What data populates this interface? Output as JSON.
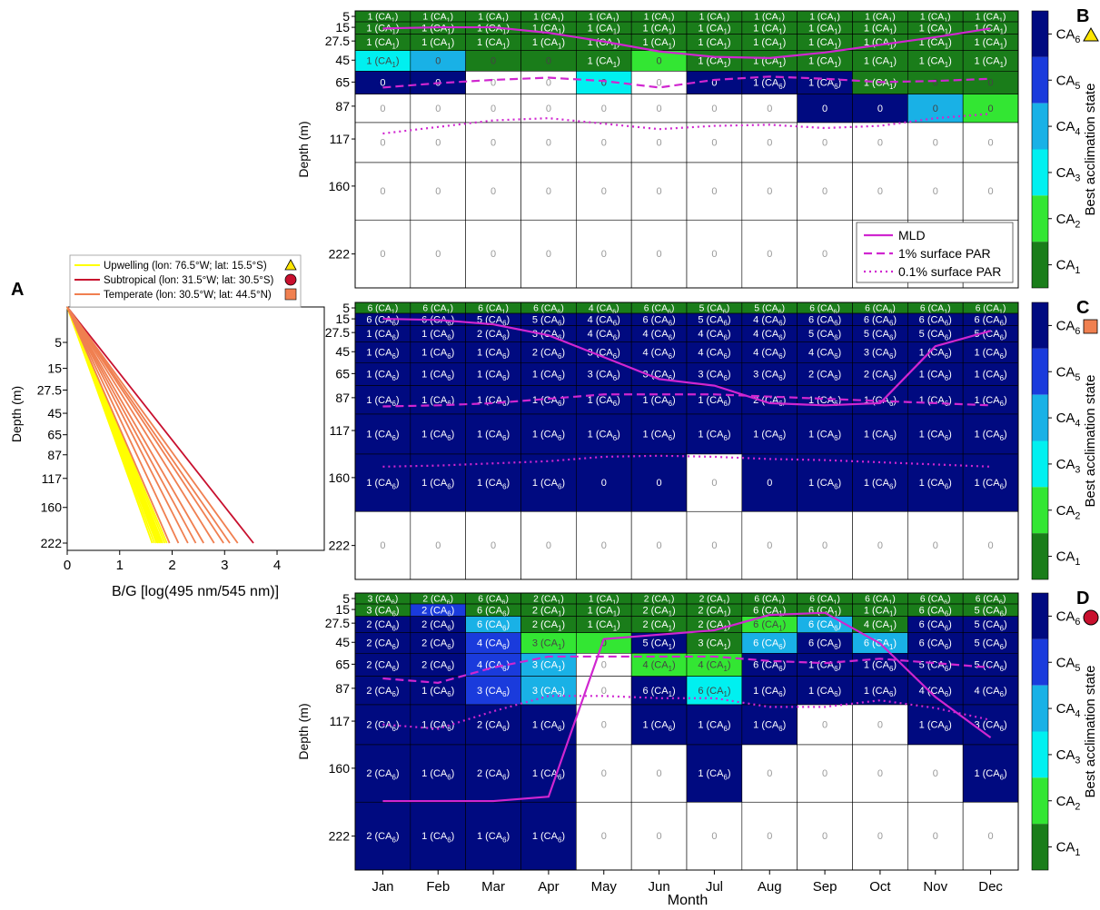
{
  "chart_data": [
    {
      "panel": "A",
      "type": "line",
      "xlabel": "B/G [log(495 nm/545 nm)]",
      "ylabel": "Depth (m)",
      "xticks": [
        "0",
        "1",
        "2",
        "3",
        "4"
      ],
      "xlim": [
        0,
        4.9
      ],
      "yticks": [
        "5",
        "15",
        "27.5",
        "45",
        "65",
        "87",
        "117",
        "160",
        "222"
      ],
      "ylim": [
        222,
        0
      ],
      "y_scale": "sqrt",
      "legend_position": "top",
      "series": [
        {
          "name": "Upwelling (lon: 76.5°W; lat: 15.5°S)",
          "color": "#ffff00",
          "marker": "triangle-yellow",
          "endpoints_at_222": [
            1.62,
            1.66,
            1.7,
            1.73,
            1.76,
            1.79,
            1.82,
            1.86,
            1.9
          ]
        },
        {
          "name": "Subtropical (lon: 31.5°W; lat: 30.5°S)",
          "color": "#c8102e",
          "marker": "circle-red",
          "endpoints_at_222": [
            3.55
          ]
        },
        {
          "name": "Temperate (lon: 30.5°W; lat: 44.5°N)",
          "color": "#f07f50",
          "marker": "square-orange",
          "endpoints_at_222": [
            1.95,
            2.12,
            2.3,
            2.45,
            2.6,
            2.8,
            2.98,
            3.1,
            3.25
          ]
        }
      ],
      "start": {
        "x": 0,
        "y": 0
      }
    },
    {
      "panel": "B",
      "type": "heatmap",
      "marker": "triangle-yellow",
      "ylabel": "Depth (m)",
      "months": [
        "Jan",
        "Feb",
        "Mar",
        "Apr",
        "May",
        "Jun",
        "Jul",
        "Aug",
        "Sep",
        "Oct",
        "Nov",
        "Dec"
      ],
      "depths": [
        "5",
        "15",
        "27.5",
        "45",
        "65",
        "87",
        "117",
        "160",
        "222"
      ],
      "cells": [
        [
          "1 (CA1)",
          "1 (CA1)",
          "1 (CA1)",
          "1 (CA1)",
          "1 (CA1)",
          "1 (CA1)",
          "1 (CA1)",
          "1 (CA1)",
          "1 (CA1)",
          "1 (CA1)",
          "1 (CA1)",
          "1 (CA1)"
        ],
        [
          "1 (CA1)",
          "1 (CA1)",
          "1 (CA1)",
          "1 (CA1)",
          "1 (CA1)",
          "1 (CA1)",
          "1 (CA1)",
          "1 (CA1)",
          "1 (CA1)",
          "1 (CA1)",
          "1 (CA1)",
          "1 (CA1)"
        ],
        [
          "1 (CA1)",
          "1 (CA1)",
          "1 (CA1)",
          "1 (CA1)",
          "1 (CA1)",
          "1 (CA1)",
          "1 (CA1)",
          "1 (CA1)",
          "1 (CA1)",
          "1 (CA1)",
          "1 (CA1)",
          "1 (CA1)"
        ],
        [
          "1 (CA1)",
          "0",
          "0",
          "0",
          "1 (CA1)",
          "0",
          "1 (CA1)",
          "1 (CA1)",
          "1 (CA1)",
          "1 (CA1)",
          "1 (CA1)",
          "1 (CA1)"
        ],
        [
          "0",
          "0",
          "0",
          "0",
          "0",
          "0",
          "0",
          "1 (CA6)",
          "1 (CA6)",
          "1 (CA1)",
          "0",
          "0"
        ],
        [
          "0",
          "0",
          "0",
          "0",
          "0",
          "0",
          "0",
          "0",
          "0",
          "0",
          "0",
          "0"
        ],
        [
          "0",
          "0",
          "0",
          "0",
          "0",
          "0",
          "0",
          "0",
          "0",
          "0",
          "0",
          "0"
        ],
        [
          "0",
          "0",
          "0",
          "0",
          "0",
          "0",
          "0",
          "0",
          "0",
          "0",
          "0",
          "0"
        ],
        [
          "0",
          "0",
          "0",
          "0",
          "0",
          "0",
          "0",
          "0",
          "0",
          "0",
          "0",
          "0"
        ]
      ],
      "state": [
        [
          1,
          1,
          1,
          1,
          1,
          1,
          1,
          1,
          1,
          1,
          1,
          1
        ],
        [
          1,
          1,
          1,
          1,
          1,
          1,
          1,
          1,
          1,
          1,
          1,
          1
        ],
        [
          1,
          1,
          1,
          1,
          1,
          1,
          1,
          1,
          1,
          1,
          1,
          1
        ],
        [
          3,
          4,
          1,
          1,
          1,
          2,
          1,
          1,
          1,
          1,
          1,
          1
        ],
        [
          6,
          6,
          0,
          0,
          3,
          0,
          6,
          6,
          6,
          1,
          1,
          1
        ],
        [
          0,
          0,
          0,
          0,
          0,
          0,
          0,
          0,
          6,
          6,
          4,
          2
        ],
        [
          0,
          0,
          0,
          0,
          0,
          0,
          0,
          0,
          0,
          0,
          0,
          0
        ],
        [
          0,
          0,
          0,
          0,
          0,
          0,
          0,
          0,
          0,
          0,
          0,
          0
        ],
        [
          0,
          0,
          0,
          0,
          0,
          0,
          0,
          0,
          0,
          0,
          0,
          0
        ]
      ],
      "mld": [
        16,
        15,
        15,
        20,
        28,
        37,
        42,
        43,
        38,
        31,
        24,
        16
      ],
      "par1": [
        70,
        66,
        63,
        61,
        64,
        70,
        63,
        60,
        62,
        65,
        64,
        62
      ],
      "par01": [
        112,
        106,
        100,
        98,
        103,
        108,
        105,
        104,
        107,
        105,
        98,
        94
      ],
      "legend": {
        "position": "bottom-right",
        "items": [
          "MLD",
          "1% surface PAR",
          "0.1% surface PAR"
        ]
      }
    },
    {
      "panel": "C",
      "type": "heatmap",
      "marker": "square-orange",
      "ylabel": "",
      "months": [
        "Jan",
        "Feb",
        "Mar",
        "Apr",
        "May",
        "Jun",
        "Jul",
        "Aug",
        "Sep",
        "Oct",
        "Nov",
        "Dec"
      ],
      "depths": [
        "5",
        "15",
        "27.5",
        "45",
        "65",
        "87",
        "117",
        "160",
        "222"
      ],
      "cells": [
        [
          "6 (CA1)",
          "6 (CA1)",
          "6 (CA1)",
          "6 (CA6)",
          "4 (CA6)",
          "6 (CA6)",
          "5 (CA6)",
          "5 (CA6)",
          "6 (CA6)",
          "6 (CA6)",
          "6 (CA1)",
          "6 (CA1)"
        ],
        [
          "6 (CA6)",
          "6 (CA6)",
          "5 (CA6)",
          "5 (CA6)",
          "4 (CA6)",
          "6 (CA6)",
          "5 (CA6)",
          "4 (CA6)",
          "6 (CA6)",
          "6 (CA6)",
          "6 (CA6)",
          "6 (CA6)"
        ],
        [
          "1 (CA6)",
          "1 (CA6)",
          "2 (CA6)",
          "3 (CA6)",
          "4 (CA6)",
          "4 (CA6)",
          "4 (CA6)",
          "4 (CA6)",
          "5 (CA6)",
          "5 (CA6)",
          "5 (CA6)",
          "5 (CA6)"
        ],
        [
          "1 (CA6)",
          "1 (CA6)",
          "1 (CA6)",
          "2 (CA6)",
          "3 (CA6)",
          "4 (CA6)",
          "4 (CA6)",
          "4 (CA6)",
          "4 (CA6)",
          "3 (CA6)",
          "1 (CA6)",
          "1 (CA6)"
        ],
        [
          "1 (CA6)",
          "1 (CA6)",
          "1 (CA6)",
          "1 (CA6)",
          "3 (CA6)",
          "3 (CA6)",
          "3 (CA6)",
          "3 (CA6)",
          "2 (CA6)",
          "2 (CA6)",
          "1 (CA6)",
          "1 (CA6)"
        ],
        [
          "1 (CA6)",
          "1 (CA6)",
          "1 (CA6)",
          "1 (CA6)",
          "1 (CA6)",
          "1 (CA6)",
          "1 (CA6)",
          "2 (CA6)",
          "1 (CA6)",
          "1 (CA6)",
          "1 (CA6)",
          "1 (CA6)"
        ],
        [
          "1 (CA6)",
          "1 (CA6)",
          "1 (CA6)",
          "1 (CA6)",
          "1 (CA6)",
          "1 (CA6)",
          "1 (CA6)",
          "1 (CA6)",
          "1 (CA6)",
          "1 (CA6)",
          "1 (CA6)",
          "1 (CA6)"
        ],
        [
          "1 (CA6)",
          "1 (CA6)",
          "1 (CA6)",
          "1 (CA6)",
          "0",
          "0",
          "0",
          "0",
          "1 (CA6)",
          "1 (CA6)",
          "1 (CA6)",
          "1 (CA6)"
        ],
        [
          "0",
          "0",
          "0",
          "0",
          "0",
          "0",
          "0",
          "0",
          "0",
          "0",
          "0",
          "0"
        ]
      ],
      "state": [
        [
          1,
          1,
          1,
          1,
          1,
          1,
          1,
          1,
          1,
          1,
          1,
          1
        ],
        [
          6,
          6,
          6,
          6,
          6,
          6,
          6,
          6,
          6,
          6,
          6,
          6
        ],
        [
          6,
          6,
          6,
          6,
          6,
          6,
          6,
          6,
          6,
          6,
          6,
          6
        ],
        [
          6,
          6,
          6,
          6,
          6,
          6,
          6,
          6,
          6,
          6,
          6,
          6
        ],
        [
          6,
          6,
          6,
          6,
          6,
          6,
          6,
          6,
          6,
          6,
          6,
          6
        ],
        [
          6,
          6,
          6,
          6,
          6,
          6,
          6,
          6,
          6,
          6,
          6,
          6
        ],
        [
          6,
          6,
          6,
          6,
          6,
          6,
          6,
          6,
          6,
          6,
          6,
          6
        ],
        [
          6,
          6,
          6,
          6,
          6,
          6,
          0,
          6,
          6,
          6,
          6,
          6
        ],
        [
          0,
          0,
          0,
          0,
          0,
          0,
          0,
          0,
          0,
          0,
          0,
          0
        ]
      ],
      "mld": [
        15,
        16,
        20,
        30,
        50,
        70,
        76,
        92,
        94,
        92,
        40,
        26
      ],
      "par1": [
        95,
        94,
        92,
        88,
        84,
        84,
        84,
        86,
        88,
        90,
        92,
        94
      ],
      "par01": [
        150,
        149,
        147,
        145,
        141,
        140,
        141,
        143,
        144,
        146,
        148,
        150
      ],
      "legend": null
    },
    {
      "panel": "D",
      "type": "heatmap",
      "marker": "circle-red",
      "ylabel": "Depth (m)",
      "xlabel": "Month",
      "months": [
        "Jan",
        "Feb",
        "Mar",
        "Apr",
        "May",
        "Jun",
        "Jul",
        "Aug",
        "Sep",
        "Oct",
        "Nov",
        "Dec"
      ],
      "depths": [
        "5",
        "15",
        "27.5",
        "45",
        "65",
        "87",
        "117",
        "160",
        "222"
      ],
      "cells": [
        [
          "3 (CA6)",
          "2 (CA6)",
          "6 (CA6)",
          "2 (CA1)",
          "1 (CA1)",
          "2 (CA1)",
          "2 (CA1)",
          "6 (CA1)",
          "6 (CA1)",
          "6 (CA1)",
          "6 (CA6)",
          "6 (CA6)"
        ],
        [
          "3 (CA6)",
          "2 (CA6)",
          "6 (CA6)",
          "2 (CA1)",
          "1 (CA1)",
          "2 (CA1)",
          "2 (CA1)",
          "6 (CA1)",
          "6 (CA1)",
          "1 (CA1)",
          "6 (CA6)",
          "5 (CA6)"
        ],
        [
          "2 (CA6)",
          "2 (CA6)",
          "6 (CA6)",
          "2 (CA1)",
          "1 (CA1)",
          "2 (CA1)",
          "2 (CA1)",
          "6 (CA1)",
          "6 (CA6)",
          "4 (CA1)",
          "6 (CA6)",
          "5 (CA6)"
        ],
        [
          "2 (CA6)",
          "2 (CA6)",
          "4 (CA6)",
          "3 (CA1)",
          "0",
          "5 (CA1)",
          "3 (CA1)",
          "6 (CA6)",
          "6 (CA6)",
          "6 (CA1)",
          "6 (CA6)",
          "5 (CA6)"
        ],
        [
          "2 (CA6)",
          "2 (CA6)",
          "4 (CA6)",
          "3 (CA1)",
          "0",
          "4 (CA1)",
          "4 (CA1)",
          "6 (CA6)",
          "1 (CA6)",
          "1 (CA6)",
          "5 (CA6)",
          "5 (CA6)"
        ],
        [
          "2 (CA6)",
          "1 (CA6)",
          "3 (CA6)",
          "3 (CA6)",
          "0",
          "6 (CA1)",
          "6 (CA1)",
          "1 (CA6)",
          "1 (CA6)",
          "1 (CA6)",
          "4 (CA6)",
          "4 (CA6)"
        ],
        [
          "2 (CA6)",
          "1 (CA6)",
          "2 (CA6)",
          "1 (CA6)",
          "0",
          "1 (CA6)",
          "1 (CA6)",
          "1 (CA6)",
          "0",
          "0",
          "1 (CA6)",
          "3 (CA6)"
        ],
        [
          "2 (CA6)",
          "1 (CA6)",
          "2 (CA6)",
          "1 (CA6)",
          "0",
          "0",
          "1 (CA6)",
          "0",
          "0",
          "0",
          "0",
          "1 (CA6)"
        ],
        [
          "2 (CA6)",
          "1 (CA6)",
          "1 (CA6)",
          "1 (CA6)",
          "0",
          "0",
          "0",
          "0",
          "0",
          "0",
          "0",
          "0"
        ]
      ],
      "state": [
        [
          1,
          1,
          1,
          1,
          1,
          1,
          1,
          1,
          1,
          1,
          1,
          1
        ],
        [
          1,
          5,
          1,
          1,
          1,
          1,
          1,
          1,
          1,
          1,
          1,
          1
        ],
        [
          6,
          6,
          4,
          1,
          1,
          1,
          1,
          2,
          4,
          1,
          6,
          6
        ],
        [
          6,
          6,
          5,
          2,
          2,
          6,
          1,
          4,
          6,
          4,
          6,
          6
        ],
        [
          6,
          6,
          5,
          4,
          0,
          2,
          2,
          6,
          6,
          6,
          6,
          6
        ],
        [
          6,
          6,
          5,
          4,
          0,
          6,
          3,
          6,
          6,
          6,
          6,
          6
        ],
        [
          6,
          6,
          6,
          6,
          0,
          6,
          6,
          6,
          0,
          0,
          6,
          6
        ],
        [
          6,
          6,
          6,
          6,
          0,
          0,
          6,
          0,
          0,
          0,
          0,
          6
        ],
        [
          6,
          6,
          6,
          6,
          0,
          0,
          0,
          0,
          0,
          0,
          0,
          0
        ]
      ],
      "mld": [
        190,
        190,
        190,
        186,
        42,
        38,
        34,
        20,
        18,
        46,
        95,
        132
      ],
      "par1": [
        78,
        82,
        68,
        58,
        58,
        58,
        58,
        62,
        64,
        60,
        64,
        68
      ],
      "par01": [
        120,
        124,
        108,
        94,
        94,
        96,
        96,
        104,
        104,
        98,
        105,
        116
      ],
      "legend": null
    }
  ],
  "colorbar": {
    "label": "Best acclimation state",
    "states": [
      {
        "name": "CA1",
        "color": "#1a7d1a"
      },
      {
        "name": "CA2",
        "color": "#33e633"
      },
      {
        "name": "CA3",
        "color": "#00f0f0"
      },
      {
        "name": "CA4",
        "color": "#19b1e6"
      },
      {
        "name": "CA5",
        "color": "#1a3bdc"
      },
      {
        "name": "CA6",
        "color": "#000a80"
      }
    ],
    "zero_color": "#ffffff"
  },
  "colors": {
    "mld": "#d026d0",
    "upwelling": "#ffff00",
    "subtropical": "#c8102e",
    "temperate": "#f07f50"
  }
}
